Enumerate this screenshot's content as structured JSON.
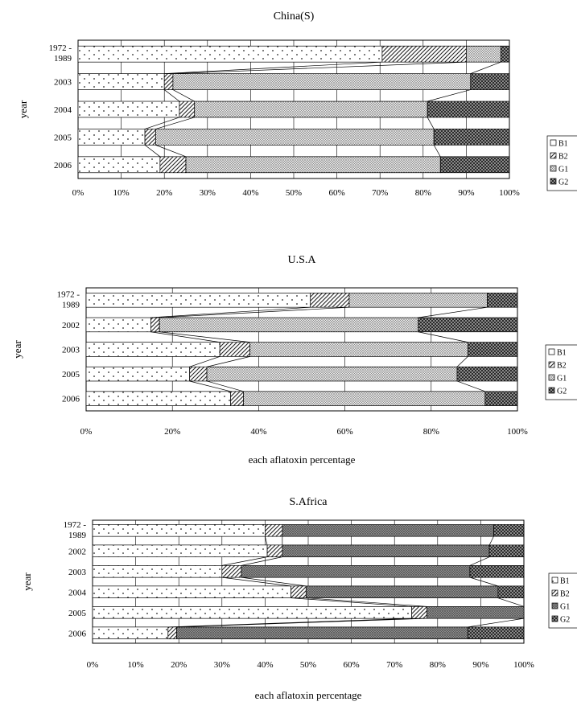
{
  "chart_data": [
    {
      "type": "bar",
      "stacked": "percent",
      "orientation": "horizontal",
      "title": "China(S)",
      "xlabel": "",
      "ylabel": "year",
      "categories": [
        "1972 - 1989",
        "2003",
        "2004",
        "2005",
        "2006"
      ],
      "x_ticks": [
        "0%",
        "10%",
        "20%",
        "30%",
        "40%",
        "50%",
        "60%",
        "70%",
        "80%",
        "90%",
        "100%"
      ],
      "xlim": [
        0,
        100
      ],
      "grid": true,
      "legend": "right",
      "series": [
        {
          "name": "B1",
          "values": [
            70.5,
            20,
            23.5,
            15.5,
            19
          ]
        },
        {
          "name": "B2",
          "values": [
            19.5,
            2,
            3.5,
            2.5,
            6
          ]
        },
        {
          "name": "G1",
          "values": [
            8,
            69,
            54,
            64.5,
            59
          ]
        },
        {
          "name": "G2",
          "values": [
            2,
            9,
            19,
            17.5,
            16
          ]
        }
      ]
    },
    {
      "type": "bar",
      "stacked": "percent",
      "orientation": "horizontal",
      "title": "U.S.A",
      "xlabel": "each aflatoxin percentage",
      "ylabel": "year",
      "categories": [
        "1972 - 1989",
        "2002",
        "2003",
        "2005",
        "2006"
      ],
      "x_ticks": [
        "0%",
        "20%",
        "40%",
        "60%",
        "80%",
        "100%"
      ],
      "xlim": [
        0,
        100
      ],
      "grid": true,
      "legend": "right",
      "series": [
        {
          "name": "B1",
          "values": [
            52,
            15,
            31,
            24,
            33.5
          ]
        },
        {
          "name": "B2",
          "values": [
            9,
            2,
            7,
            4,
            3
          ]
        },
        {
          "name": "G1",
          "values": [
            32,
            60,
            50.5,
            58,
            56
          ]
        },
        {
          "name": "G2",
          "values": [
            7,
            23,
            11.5,
            14,
            7.5
          ]
        }
      ]
    },
    {
      "type": "bar",
      "stacked": "percent",
      "orientation": "horizontal",
      "title": "S.Africa",
      "xlabel": "each aflatoxin percentage",
      "ylabel": "year",
      "categories": [
        "1972 - 1989",
        "2002",
        "2003",
        "2004",
        "2005",
        "2006"
      ],
      "x_ticks": [
        "0%",
        "10%",
        "20%",
        "30%",
        "40%",
        "50%",
        "60%",
        "70%",
        "80%",
        "90%",
        "100%"
      ],
      "xlim": [
        0,
        100
      ],
      "grid": true,
      "legend": "right",
      "series": [
        {
          "name": "B1",
          "values": [
            40,
            40.5,
            30,
            46,
            74,
            17.5
          ]
        },
        {
          "name": "B2",
          "values": [
            4,
            3.5,
            4.5,
            3.5,
            3.5,
            2
          ]
        },
        {
          "name": "G1",
          "values": [
            49,
            48,
            53,
            44.5,
            22.5,
            67.5
          ]
        },
        {
          "name": "G2",
          "values": [
            7,
            8,
            12.5,
            6,
            0,
            13
          ]
        }
      ]
    }
  ]
}
